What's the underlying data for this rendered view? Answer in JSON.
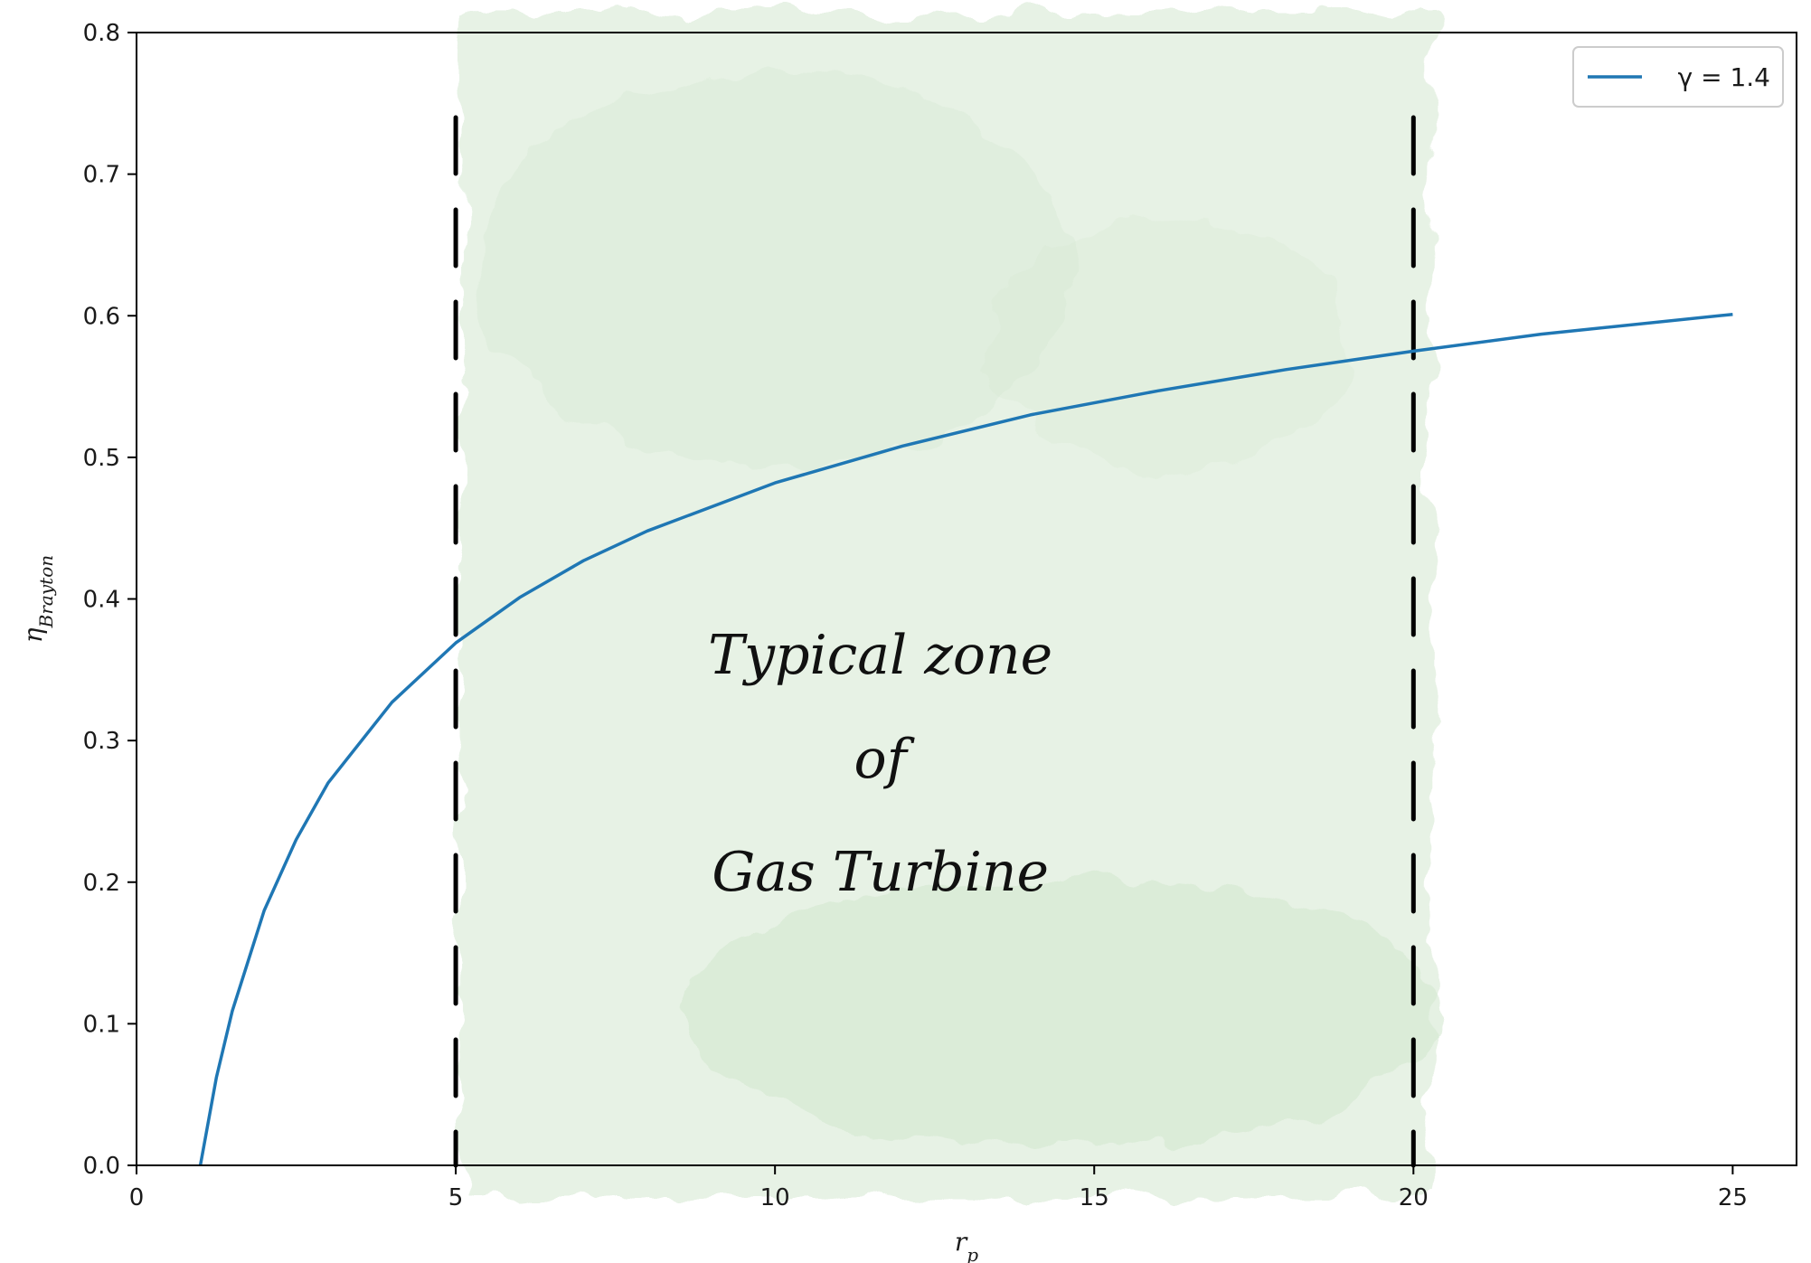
{
  "chart_data": {
    "type": "line",
    "xlabel": "r_p",
    "ylabel": "η_Brayton",
    "xlim": [
      0,
      26
    ],
    "ylim": [
      0,
      0.8
    ],
    "xticks": [
      0,
      5,
      10,
      15,
      20,
      25
    ],
    "xtick_labels": [
      "0",
      "5",
      "10",
      "15",
      "20",
      "25"
    ],
    "yticks": [
      0.0,
      0.1,
      0.2,
      0.3,
      0.4,
      0.5,
      0.6,
      0.7,
      0.8
    ],
    "ytick_labels": [
      "0.0",
      "0.1",
      "0.2",
      "0.3",
      "0.4",
      "0.5",
      "0.6",
      "0.7",
      "0.8"
    ],
    "grid": false,
    "legend": {
      "placement": "top-right",
      "entries": [
        "γ = 1.4"
      ]
    },
    "series": [
      {
        "name": "γ = 1.4",
        "color": "#1f77b4",
        "x": [
          1,
          1.25,
          1.5,
          2,
          2.5,
          3,
          4,
          5,
          6,
          7,
          8,
          10,
          12,
          14,
          16,
          18,
          20,
          22,
          25
        ],
        "y": [
          0.0,
          0.062,
          0.109,
          0.18,
          0.23,
          0.27,
          0.327,
          0.369,
          0.401,
          0.427,
          0.448,
          0.482,
          0.508,
          0.53,
          0.547,
          0.562,
          0.575,
          0.587,
          0.601
        ]
      }
    ],
    "vlines": [
      {
        "x": 5,
        "style": "dashed",
        "color": "#000000"
      },
      {
        "x": 20,
        "style": "dashed",
        "color": "#000000"
      }
    ],
    "shaded_region": {
      "x_range": [
        5,
        20
      ],
      "color": "#d4e8d0"
    },
    "annotations": [
      "Typical zone",
      "of",
      "Gas Turbine"
    ]
  }
}
